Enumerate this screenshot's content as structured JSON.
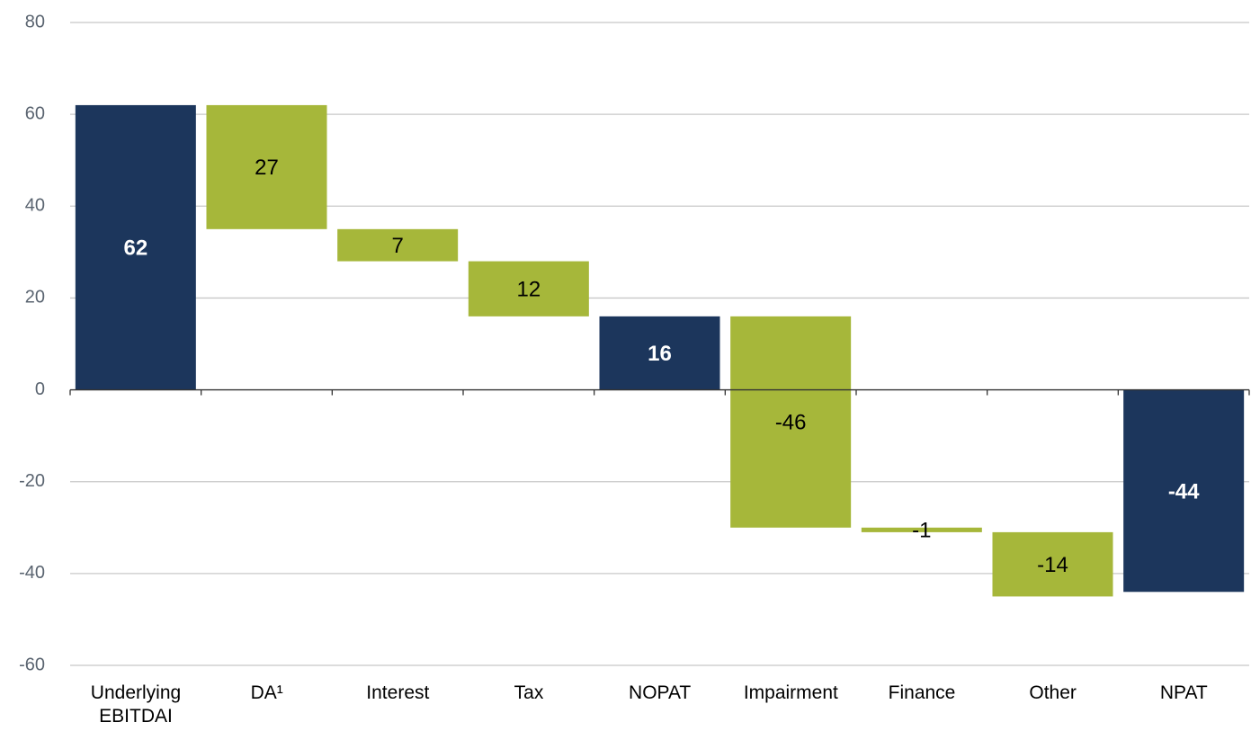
{
  "chart_data": {
    "type": "waterfall",
    "categories": [
      "Underlying EBITDAI",
      "DA¹",
      "Interest",
      "Tax",
      "NOPAT",
      "Impairment",
      "Finance",
      "Other",
      "NPAT"
    ],
    "values": [
      62,
      27,
      7,
      12,
      16,
      -46,
      -1,
      -14,
      -44
    ],
    "measure": [
      "absolute",
      "decrease",
      "decrease",
      "decrease",
      "absolute",
      "relative",
      "relative",
      "relative",
      "absolute"
    ],
    "total_color": "#1c365c",
    "change_color": "#a6b73a",
    "ylim": [
      -60,
      80
    ],
    "yticks": [
      -60,
      -40,
      -20,
      0,
      20,
      40,
      60,
      80
    ],
    "grid": true
  }
}
